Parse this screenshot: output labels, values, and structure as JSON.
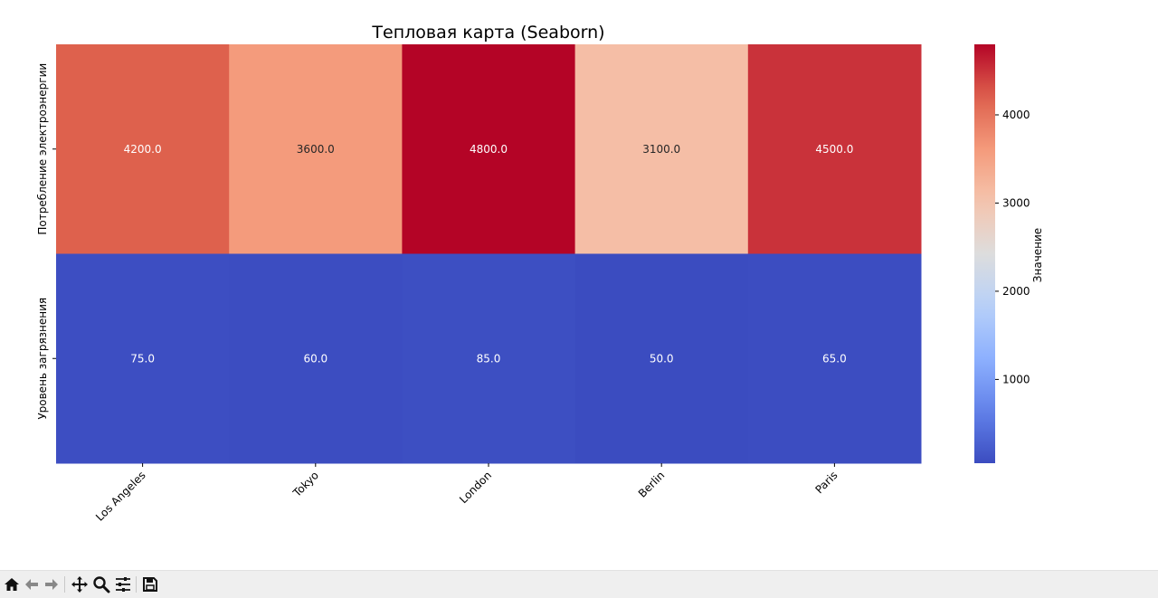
{
  "chart_data": {
    "type": "heatmap",
    "title": "Тепловая карта (Seaborn)",
    "columns": [
      "Los Angeles",
      "Tokyo",
      "London",
      "Berlin",
      "Paris"
    ],
    "rows": [
      "Потребление электроэнергии",
      "Уровень загрязнения"
    ],
    "values": [
      [
        4200.0,
        3600.0,
        4800.0,
        3100.0,
        4500.0
      ],
      [
        75.0,
        60.0,
        85.0,
        50.0,
        65.0
      ]
    ],
    "annotation_format": "0.1f",
    "colormap": "coolwarm",
    "vmin": 50,
    "vmax": 4800,
    "colorbar": {
      "label": "Значение",
      "ticks": [
        1000,
        2000,
        3000,
        4000
      ],
      "tick_labels": [
        "1000",
        "2000",
        "3000",
        "4000"
      ]
    }
  },
  "toolbar": {
    "icons": [
      "home-icon",
      "back-icon",
      "forward-icon",
      "pan-icon",
      "zoom-icon",
      "configure-icon",
      "save-icon"
    ]
  }
}
